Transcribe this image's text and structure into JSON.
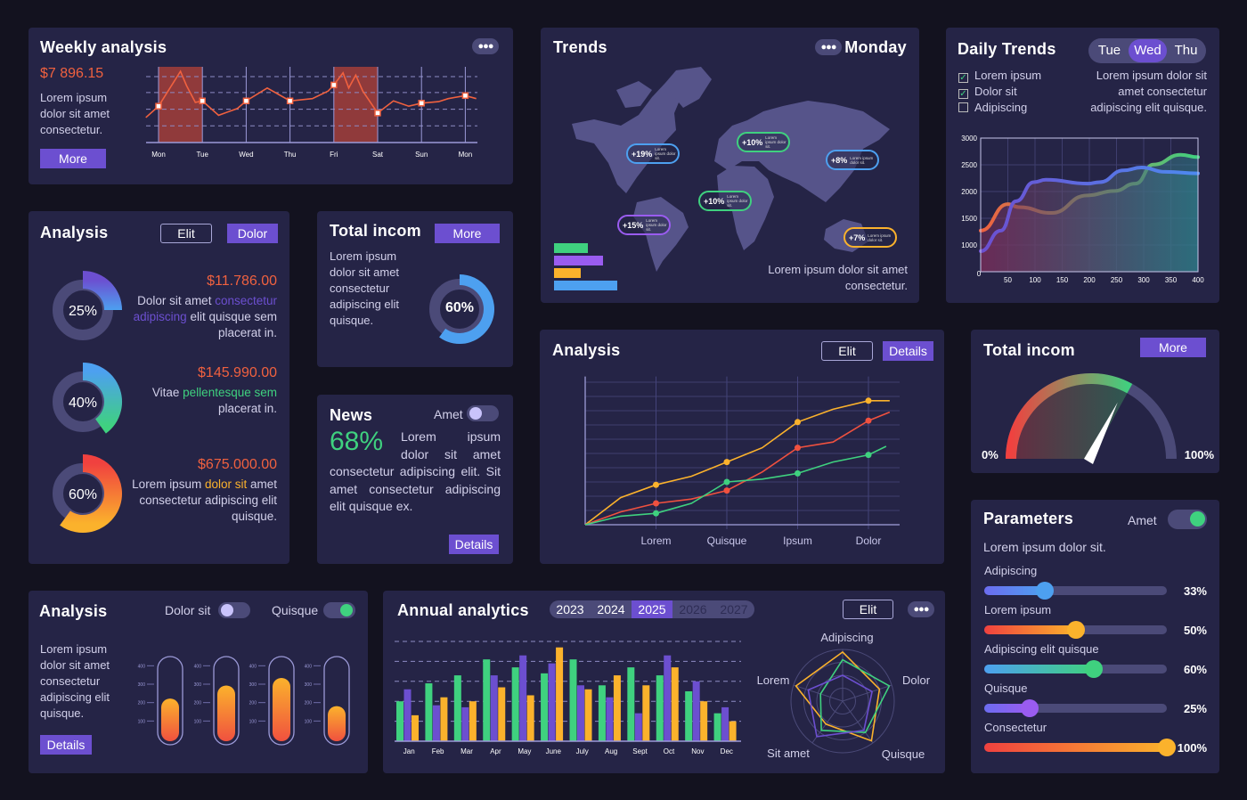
{
  "colors": {
    "accent": "#6c4fd0",
    "orange": "#f0613f",
    "green": "#3fd17f",
    "yellow": "#fbb22c",
    "blue": "#4da0f0",
    "purple": "#6c4fd0"
  },
  "weekly": {
    "title": "Weekly analysis",
    "amount": "$7 896.15",
    "desc": "Lorem ipsum dolor sit amet consectetur.",
    "more": "More",
    "menu_icon": "more-dots-icon",
    "chart_data": {
      "type": "line",
      "categories": [
        "Mon",
        "Tue",
        "Wed",
        "Thu",
        "Fri",
        "Sat",
        "Sun",
        "Mon"
      ],
      "highlighted": [
        [
          "Mon",
          "Tue"
        ],
        [
          "Fri",
          "Sat"
        ]
      ],
      "points": [
        [
          -0.29,
          33
        ],
        [
          0,
          48
        ],
        [
          0.5,
          94
        ],
        [
          0.64,
          75
        ],
        [
          0.84,
          53
        ],
        [
          1,
          55
        ],
        [
          1.37,
          36
        ],
        [
          1.8,
          45
        ],
        [
          2,
          55
        ],
        [
          2.48,
          72
        ],
        [
          3,
          55
        ],
        [
          3.51,
          58
        ],
        [
          3.87,
          68
        ],
        [
          4,
          76
        ],
        [
          4.21,
          92
        ],
        [
          4.34,
          72
        ],
        [
          4.5,
          89
        ],
        [
          4.66,
          68
        ],
        [
          5,
          39
        ],
        [
          5.36,
          55
        ],
        [
          5.71,
          48
        ],
        [
          6,
          52
        ],
        [
          6.39,
          54
        ],
        [
          6.61,
          58
        ],
        [
          7,
          62
        ],
        [
          7.25,
          58
        ]
      ],
      "grid": true
    }
  },
  "trends": {
    "title": "Trends",
    "day": "Monday",
    "footer": "Lorem ipsum dolor sit amet consectetur.",
    "badges": [
      {
        "value": "+19%",
        "text": "Lorem ipsum dolor sit.",
        "color": "#4da0f0"
      },
      {
        "value": "+10%",
        "text": "Lorem ipsum dolor sit.",
        "color": "#3fd17f"
      },
      {
        "value": "+8%",
        "text": "Lorem ipsum dolor sit.",
        "color": "#4da0f0"
      },
      {
        "value": "+10%",
        "text": "Lorem ipsum dolor sit.",
        "color": "#3fd17f"
      },
      {
        "value": "+15%",
        "text": "Lorem ipsum dolor sit.",
        "color": "#9a5cf0"
      },
      {
        "value": "+7%",
        "text": "Lorem ipsum dolor sit.",
        "color": "#fbb22c"
      }
    ],
    "legend_bars": [
      {
        "value": 38,
        "color": "#3fd17f"
      },
      {
        "value": 55,
        "color": "#9a5cf0"
      },
      {
        "value": 30,
        "color": "#fbb22c"
      },
      {
        "value": 71,
        "color": "#4da0f0"
      }
    ]
  },
  "daily": {
    "title": "Daily Trends",
    "tabs": [
      "Tue",
      "Wed",
      "Thu"
    ],
    "active_tab": "Wed",
    "checks": [
      {
        "label": "Lorem ipsum",
        "checked": true
      },
      {
        "label": "Dolor sit",
        "checked": true
      },
      {
        "label": "Adipiscing",
        "checked": false
      }
    ],
    "desc": "Lorem ipsum dolor sit amet consectetur adipiscing elit quisque.",
    "chart_data": {
      "type": "area",
      "xlim": [
        0,
        400
      ],
      "ylim": [
        500,
        3000
      ],
      "xticks": [
        "50",
        "100",
        "150",
        "200",
        "250",
        "300",
        "350",
        "400"
      ],
      "yticks": [
        "3000",
        "2500",
        "2000",
        "1500",
        "1000"
      ],
      "origin_label": "0",
      "grid": true,
      "series": [
        {
          "color": "#f0613f",
          "color_end": "#3fd17f",
          "points": [
            [
              0,
              1269
            ],
            [
              50,
              1764
            ],
            [
              70,
              1709
            ],
            [
              130,
              1599
            ],
            [
              196,
              1928
            ],
            [
              246,
              2011
            ],
            [
              285,
              2148
            ],
            [
              318,
              2505
            ],
            [
              368,
              2687
            ],
            [
              400,
              2643
            ]
          ]
        },
        {
          "color": "#6c4fd0",
          "color_end": "#4d8af0",
          "points": [
            [
              0,
              885
            ],
            [
              37,
              1269
            ],
            [
              65,
              1819
            ],
            [
              98,
              2176
            ],
            [
              120,
              2220
            ],
            [
              197,
              2148
            ],
            [
              219,
              2176
            ],
            [
              263,
              2396
            ],
            [
              296,
              2450
            ],
            [
              340,
              2368
            ],
            [
              400,
              2340
            ]
          ]
        }
      ]
    }
  },
  "analysis1": {
    "title": "Analysis",
    "btn_outline": "Elit",
    "btn_fill": "Dolor",
    "items": [
      {
        "percent": 25,
        "label": "25%",
        "amount": "$11.786.00",
        "text_a": "Dolor sit amet ",
        "text_hl": "consectetur adipiscing",
        "text_b": " elit quisque sem placerat in.",
        "hl_color": "#6c4fd0",
        "c1": "#6c4fd0",
        "c2": "#4da0f0"
      },
      {
        "percent": 40,
        "label": "40%",
        "amount": "$145.990.00",
        "text_a": "Vitae ",
        "text_hl": "pellentesque sem",
        "text_b": " placerat in.",
        "hl_color": "#3fd17f",
        "c1": "#4da0f0",
        "c2": "#3fd17f"
      },
      {
        "percent": 60,
        "label": "60%",
        "amount": "$675.000.00",
        "text_a": "Lorem ipsum ",
        "text_hl": "dolor sit",
        "text_b": " amet consectetur adipiscing elit quisque.",
        "hl_color": "#fbb22c",
        "c1": "#f0413f",
        "c2": "#fbb22c"
      }
    ]
  },
  "income1": {
    "title": "Total incom",
    "more": "More",
    "desc": "Lorem ipsum dolor sit amet consectetur adipiscing elit quisque.",
    "percent": 60,
    "label": "60%"
  },
  "news": {
    "title": "News",
    "toggle_label": "Amet",
    "toggle_on": false,
    "big": "68%",
    "text": "Lorem ipsum dolor sit amet consectetur adipiscing elit. Sit amet consectetur adipiscing elit quisque ex.",
    "details": "Details"
  },
  "analysis2": {
    "title": "Analysis",
    "btn_outline": "Elit",
    "btn_fill": "Details",
    "chart_data": {
      "type": "line",
      "categories": [
        "Lorem",
        "Quisque",
        "Ipsum",
        "Dolor"
      ],
      "ylim": [
        0,
        10
      ],
      "grid": true,
      "series": [
        {
          "color": "#fbb22c",
          "points": [
            [
              0,
              0
            ],
            [
              0.5,
              1.9
            ],
            [
              1,
              2.8
            ],
            [
              1.5,
              3.4
            ],
            [
              2,
              4.4
            ],
            [
              2.5,
              5.4
            ],
            [
              3,
              7.2
            ],
            [
              3.5,
              8.1
            ],
            [
              4,
              8.7
            ],
            [
              4.3,
              8.7
            ]
          ]
        },
        {
          "color": "#f0513f",
          "points": [
            [
              0,
              0
            ],
            [
              0.5,
              0.9
            ],
            [
              1,
              1.5
            ],
            [
              1.5,
              1.8
            ],
            [
              2,
              2.4
            ],
            [
              2.5,
              3.7
            ],
            [
              3,
              5.4
            ],
            [
              3.5,
              5.8
            ],
            [
              4,
              7.3
            ],
            [
              4.3,
              7.9
            ]
          ]
        },
        {
          "color": "#3fd17f",
          "points": [
            [
              0,
              0
            ],
            [
              0.5,
              0.6
            ],
            [
              1,
              0.8
            ],
            [
              1.5,
              1.5
            ],
            [
              2,
              3.0
            ],
            [
              2.5,
              3.2
            ],
            [
              3,
              3.6
            ],
            [
              3.5,
              4.4
            ],
            [
              4,
              4.9
            ],
            [
              4.25,
              5.5
            ]
          ]
        }
      ]
    }
  },
  "gauge": {
    "title": "Total incom",
    "more": "More",
    "min_label": "0%",
    "max_label": "100%",
    "value": 66
  },
  "params": {
    "title": "Parameters",
    "toggle_label": "Amet",
    "toggle_on": true,
    "desc": "Lorem ipsum dolor sit.",
    "sliders": [
      {
        "label": "Adipiscing",
        "value": 33,
        "display": "33%",
        "c1": "#6c6cf0",
        "c2": "#4da0f0"
      },
      {
        "label": "Lorem ipsum",
        "value": 50,
        "display": "50%",
        "c1": "#f0413f",
        "c2": "#fbb22c"
      },
      {
        "label": "Adipiscing elit quisque",
        "value": 60,
        "display": "60%",
        "c1": "#4da0f0",
        "c2": "#3fd17f"
      },
      {
        "label": "Quisque",
        "value": 25,
        "display": "25%",
        "c1": "#6c6cf0",
        "c2": "#9a5cf0"
      },
      {
        "label": "Consectetur",
        "value": 100,
        "display": "100%",
        "c1": "#f0413f",
        "c2": "#fbb22c"
      }
    ]
  },
  "analysis3": {
    "title": "Analysis",
    "toggle1_label": "Dolor sit",
    "toggle1_on": false,
    "toggle2_label": "Quisque",
    "toggle2_on": true,
    "desc": "Lorem ipsum dolor sit amet consectetur adipiscing elit quisque.",
    "details": "Details",
    "chart_data": {
      "type": "bar",
      "ticks": [
        "400",
        "300",
        "200",
        "100"
      ],
      "ylim": [
        0,
        450
      ],
      "values": [
        222,
        293,
        334,
        181
      ]
    }
  },
  "annual": {
    "title": "Annual analytics",
    "years": [
      "2023",
      "2024",
      "2025",
      "2026",
      "2027"
    ],
    "active_year": "2025",
    "elit": "Elit",
    "chart_data": {
      "type": "bar",
      "categories": [
        "Jan",
        "Feb",
        "Mar",
        "Apr",
        "May",
        "June",
        "July",
        "Aug",
        "Sept",
        "Oct",
        "Nov",
        "Dec"
      ],
      "ylim": [
        0,
        5
      ],
      "grid": true,
      "series": [
        {
          "color": "#3fd17f",
          "values": [
            2.0,
            2.9,
            3.3,
            4.1,
            3.7,
            3.4,
            4.1,
            2.8,
            3.7,
            3.3,
            2.5,
            1.4
          ]
        },
        {
          "color": "#6c4fd0",
          "values": [
            2.6,
            1.8,
            1.7,
            3.3,
            4.3,
            3.9,
            2.8,
            2.2,
            1.4,
            4.3,
            3.0,
            1.7
          ]
        },
        {
          "color": "#fbb22c",
          "values": [
            1.3,
            2.2,
            2.0,
            2.7,
            2.3,
            4.7,
            2.6,
            3.3,
            2.8,
            3.7,
            2.0,
            1.0
          ]
        }
      ]
    },
    "radar": {
      "type": "radar",
      "axes": [
        "Adipiscing",
        "Dolor",
        "Quisque",
        "Sit amet",
        "Lorem"
      ],
      "series": [
        {
          "color": "#fbb22c",
          "values": [
            0.95,
            0.75,
            0.95,
            0.55,
            0.95
          ]
        },
        {
          "color": "#3fd17f",
          "values": [
            0.8,
            0.95,
            0.75,
            0.7,
            0.45
          ]
        },
        {
          "color": "#6c4fd0",
          "values": [
            0.5,
            0.6,
            0.7,
            0.85,
            0.7
          ]
        }
      ]
    }
  }
}
